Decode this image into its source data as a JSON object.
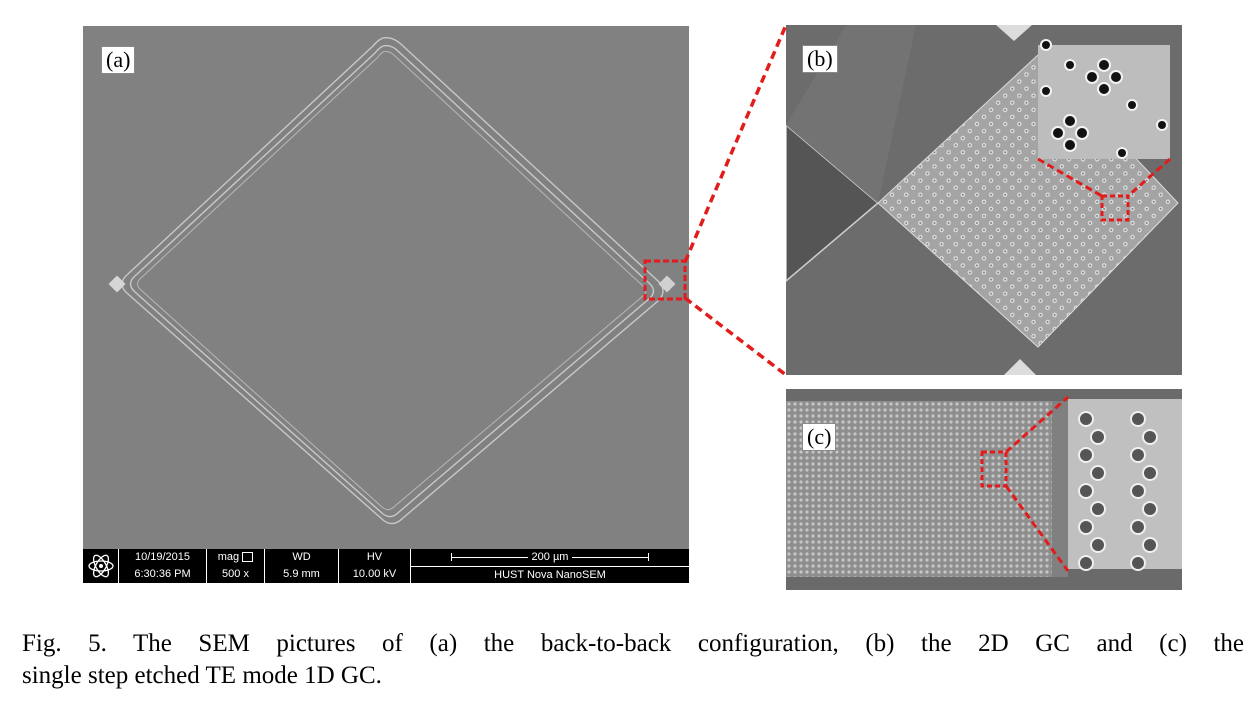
{
  "figure": {
    "panel_a": {
      "label": "(a)",
      "sem_bar": {
        "date": "10/19/2015",
        "time": "6:30:36 PM",
        "mag_label": "mag",
        "mag_value": "500 x",
        "wd_label": "WD",
        "wd_value": "5.9 mm",
        "hv_label": "HV",
        "hv_value": "10.00 kV",
        "scale_label": "200 µm",
        "instrument": "HUST Nova NanoSEM"
      }
    },
    "panel_b": {
      "label": "(b)"
    },
    "panel_c": {
      "label": "(c)"
    },
    "colors": {
      "highlight": "#e21b1b",
      "sem_background": "#808080"
    }
  },
  "caption": {
    "line1": "Fig. 5. The SEM pictures of (a) the back-to-back configuration, (b) the 2D GC and (c) the",
    "line2": "single step etched TE mode 1D GC."
  }
}
